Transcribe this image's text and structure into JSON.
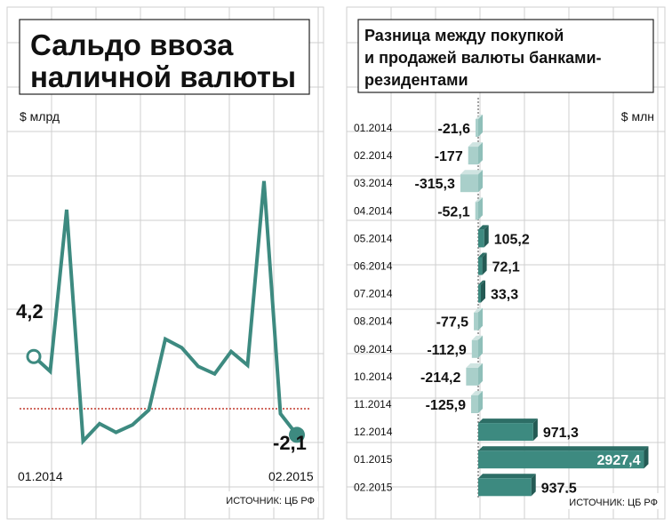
{
  "chart_data": [
    {
      "type": "line",
      "title": "Сальдо ввоза наличной валюты",
      "title_lines": [
        "Сальдо ввоза",
        "наличной валюты"
      ],
      "ylabel": "$ млрд",
      "x_start_label": "01.2014",
      "x_end_label": "02.2015",
      "start_value_label": "4,2",
      "end_value_label": "-2,1",
      "values": [
        4.2,
        3.0,
        16.0,
        -2.6,
        -1.2,
        -1.9,
        -1.3,
        -0.1,
        5.6,
        4.9,
        3.4,
        2.8,
        4.6,
        3.5,
        18.3,
        -0.4,
        -2.1
      ],
      "ylim": [
        -5,
        24
      ],
      "reference_line": 0,
      "source": "ИСТОЧНИК: ЦБ РФ"
    },
    {
      "type": "bar",
      "orientation": "horizontal",
      "title": "Разница между покупкой и продажей валюты банками-резидентами",
      "title_lines": [
        "Разница между покупкой",
        "и продажей валюты банками-",
        "резидентами"
      ],
      "ylabel": "$ млн",
      "categories": [
        "01.2014",
        "02.2014",
        "03.2014",
        "04.2014",
        "05.2014",
        "06.2014",
        "07.2014",
        "08.2014",
        "09.2014",
        "10.2014",
        "11.2014",
        "12.2014",
        "01.2015",
        "02.2015"
      ],
      "values": [
        -21.6,
        -177,
        -315.3,
        -52.1,
        105.2,
        72.1,
        33.3,
        -77.5,
        -112.9,
        -214.2,
        -125.9,
        971.3,
        2927.4,
        937.5
      ],
      "value_labels": [
        "-21,6",
        "-177",
        "-315,3",
        "-52,1",
        "105,2",
        "72,1",
        "33,3",
        "-77,5",
        "-112,9",
        "-214,2",
        "-125,9",
        "971,3",
        "2927,4",
        "937,5"
      ],
      "source": "ИСТОЧНИК: ЦБ РФ"
    }
  ],
  "colors": {
    "teal": "#3d8a80",
    "teal_dark": "#2d6e66",
    "teal_light": "#a9cfca",
    "teal_pale": "#cfe4e1",
    "reference": "#c0392b",
    "grid": "#cfcfcf",
    "text": "#111111"
  }
}
